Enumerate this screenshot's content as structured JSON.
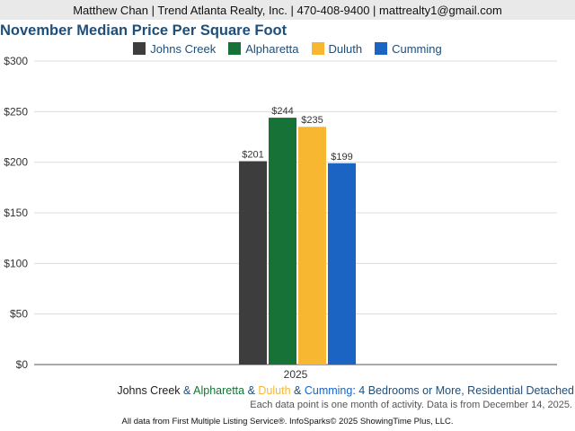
{
  "header": {
    "contact": "Matthew Chan | Trend Atlanta Realty, Inc. | 470-408-9400 | mattrealty1@gmail.com"
  },
  "colors": {
    "Johns Creek": "#3d3d3d",
    "Alpharetta": "#177237",
    "Duluth": "#f7b731",
    "Cumming": "#1b64c4"
  },
  "chart_data": {
    "type": "bar",
    "title": "November Median Price Per Square Foot",
    "categories": [
      "2025"
    ],
    "series": [
      {
        "name": "Johns Creek",
        "values": [
          201
        ],
        "label": "$201"
      },
      {
        "name": "Alpharetta",
        "values": [
          244
        ],
        "label": "$244"
      },
      {
        "name": "Duluth",
        "values": [
          235
        ],
        "label": "$235"
      },
      {
        "name": "Cumming",
        "values": [
          199
        ],
        "label": "$199"
      }
    ],
    "ylim": [
      0,
      300
    ],
    "yticks": [
      0,
      50,
      100,
      150,
      200,
      250,
      300
    ],
    "ytick_labels": [
      "$0",
      "$50",
      "$100",
      "$150",
      "$200",
      "$250",
      "$300"
    ],
    "grid": true,
    "legend": "top-center"
  },
  "footer": {
    "subtitle": {
      "parts": [
        {
          "text": "Johns Creek",
          "series": "Johns Creek"
        },
        {
          "text": " & ",
          "series": null
        },
        {
          "text": "Alpharetta",
          "series": "Alpharetta"
        },
        {
          "text": " & ",
          "series": null
        },
        {
          "text": "Duluth",
          "series": "Duluth"
        },
        {
          "text": " & ",
          "series": null
        },
        {
          "text": "Cumming",
          "series": "Cumming"
        },
        {
          "text": ": 4 Bedrooms or More, Residential Detached",
          "series": null
        }
      ]
    },
    "note": "Each data point is one month of activity. Data is from December 14, 2025.",
    "credit": "All data from First Multiple Listing Service®. InfoSparks© 2025 ShowingTime Plus, LLC."
  }
}
